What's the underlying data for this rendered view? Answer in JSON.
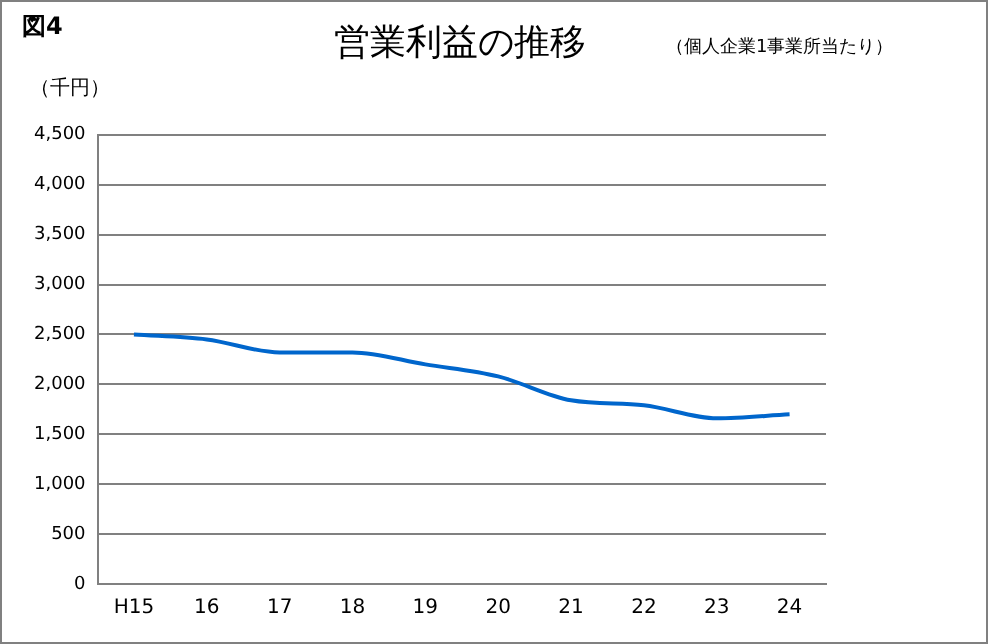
{
  "chart_data": {
    "type": "line",
    "title": "営業利益の推移",
    "subtitle": "（個人企業1事業所当たり）",
    "ylabel": "（千円）",
    "annotations": [
      "図4"
    ],
    "categories": [
      "H15",
      "16",
      "17",
      "18",
      "19",
      "20",
      "21",
      "22",
      "23",
      "24"
    ],
    "series": [
      {
        "color": "#0066cc",
        "values": [
          2500,
          2450,
          2320,
          2320,
          2200,
          2080,
          1840,
          1790,
          1660,
          1700
        ]
      }
    ],
    "ylim": [
      0,
      4500
    ],
    "yticks": [
      0,
      500,
      {
        "value": 1000,
        "label": "1,000"
      },
      {
        "value": 1500,
        "label": "1,500"
      },
      {
        "value": 2000,
        "label": "2,000"
      },
      {
        "value": 2500,
        "label": "2,500"
      },
      {
        "value": 3000,
        "label": "3,000"
      },
      {
        "value": 3500,
        "label": "3,500"
      },
      {
        "value": 4000,
        "label": "4,000"
      },
      {
        "value": 4500,
        "label": "4,500"
      }
    ],
    "grid": "y",
    "legend": false,
    "marker": "none",
    "line_style": "solid"
  }
}
